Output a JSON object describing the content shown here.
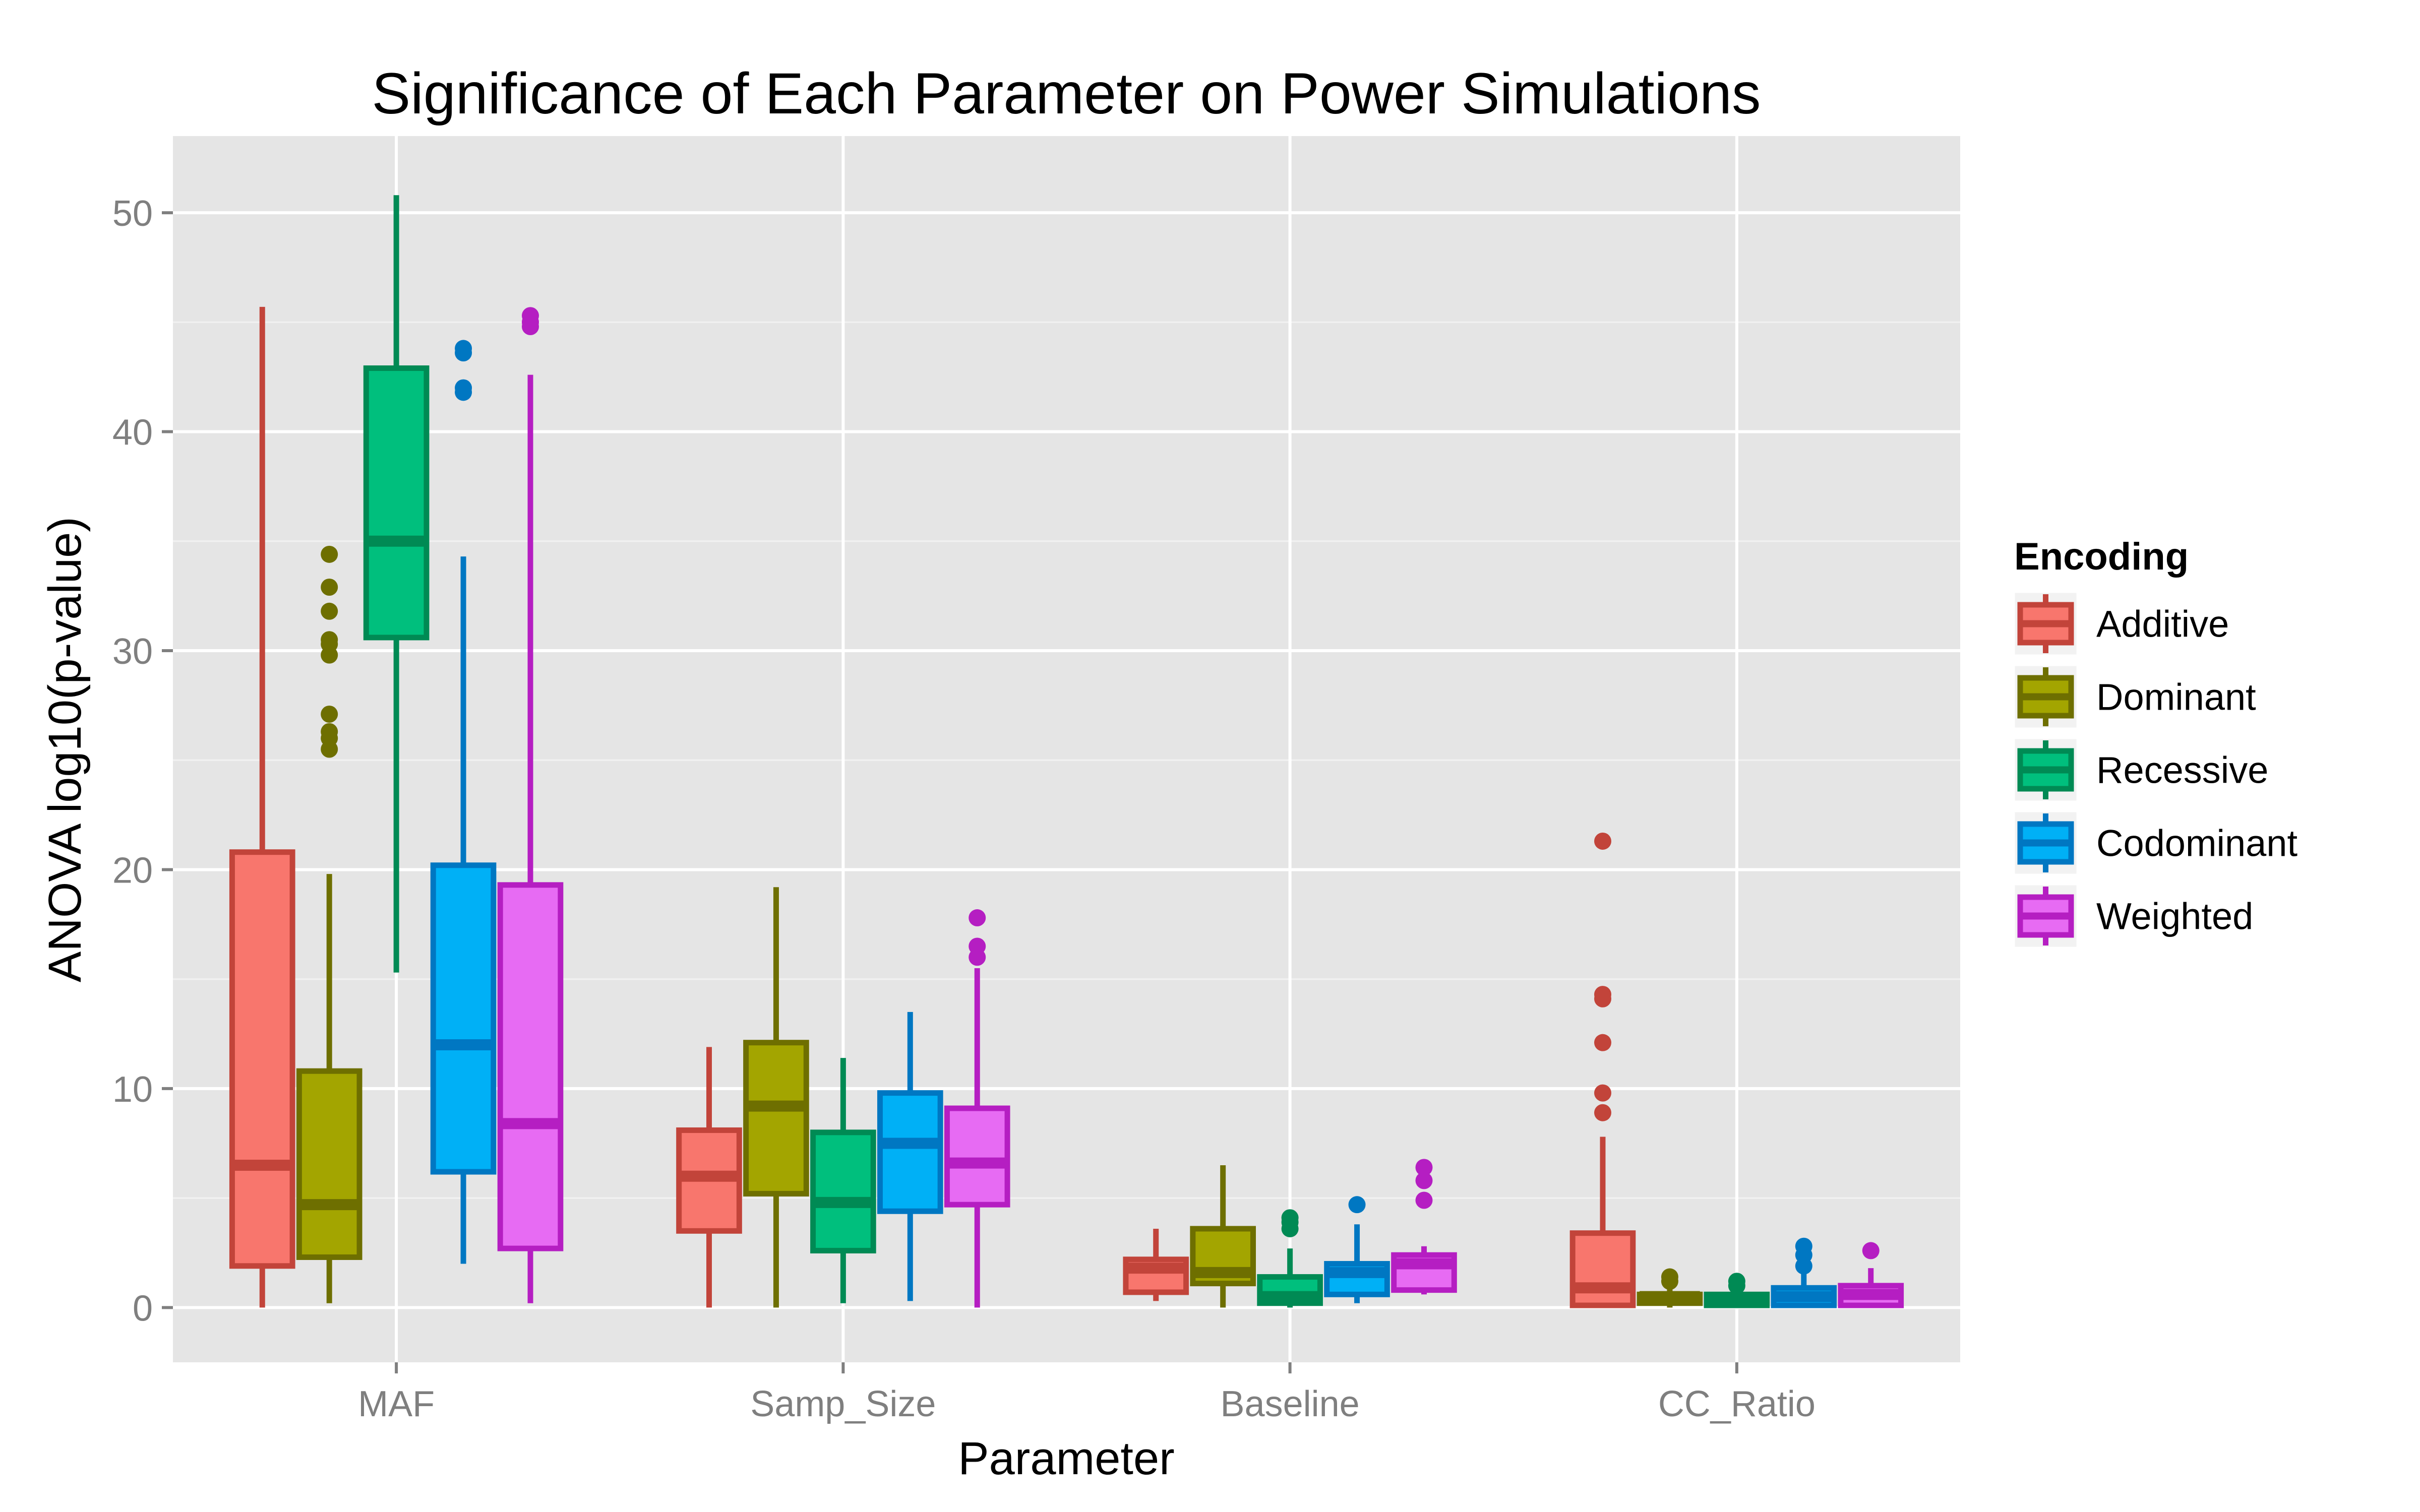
{
  "chart_data": {
    "type": "box",
    "title": "Significance of Each Parameter on Power Simulations",
    "xlabel": "Parameter",
    "ylabel": "ANOVA log10(p-value)",
    "categories": [
      "MAF",
      "Samp_Size",
      "Baseline",
      "CC_Ratio"
    ],
    "ylim": [
      -2.5,
      53.5
    ],
    "yticks": [
      0,
      10,
      20,
      30,
      40,
      50
    ],
    "grid": true,
    "legend": {
      "title": "Encoding",
      "position": "right"
    },
    "series": [
      {
        "name": "Additive",
        "fill": "#F8766D",
        "stroke": "#C2443A",
        "boxes": [
          {
            "min": 0,
            "q1": 1.9,
            "median": 6.5,
            "q3": 20.8,
            "max": 45.7,
            "outliers": []
          },
          {
            "min": 0,
            "q1": 3.5,
            "median": 6.0,
            "q3": 8.1,
            "max": 11.9,
            "outliers": []
          },
          {
            "min": 0.3,
            "q1": 0.7,
            "median": 1.8,
            "q3": 2.2,
            "max": 3.6,
            "outliers": []
          },
          {
            "min": 0,
            "q1": 0.1,
            "median": 0.9,
            "q3": 3.4,
            "max": 7.8,
            "outliers": [
              8.9,
              9.8,
              12.1,
              14.1,
              14.3,
              21.3
            ]
          }
        ]
      },
      {
        "name": "Dominant",
        "fill": "#A3A500",
        "stroke": "#6E6F00",
        "boxes": [
          {
            "min": 0.2,
            "q1": 2.3,
            "median": 4.7,
            "q3": 10.8,
            "max": 19.8,
            "outliers": [
              25.5,
              26.0,
              26.3,
              27.1,
              29.8,
              30.3,
              30.5,
              31.8,
              32.9,
              34.4
            ]
          },
          {
            "min": 0,
            "q1": 5.2,
            "median": 9.2,
            "q3": 12.1,
            "max": 19.2,
            "outliers": []
          },
          {
            "min": 0,
            "q1": 1.1,
            "median": 1.6,
            "q3": 3.6,
            "max": 6.5,
            "outliers": []
          },
          {
            "min": 0,
            "q1": 0.2,
            "median": 0.5,
            "q3": 0.6,
            "max": 1.0,
            "outliers": [
              1.2,
              1.4
            ]
          }
        ]
      },
      {
        "name": "Recessive",
        "fill": "#00BF7D",
        "stroke": "#008A54",
        "boxes": [
          {
            "min": 15.3,
            "q1": 30.6,
            "median": 35.0,
            "q3": 42.9,
            "max": 50.8,
            "outliers": []
          },
          {
            "min": 0.2,
            "q1": 2.6,
            "median": 4.8,
            "q3": 8.0,
            "max": 11.4,
            "outliers": []
          },
          {
            "min": 0,
            "q1": 0.2,
            "median": 0.5,
            "q3": 1.4,
            "max": 2.7,
            "outliers": [
              3.6,
              3.9,
              4.1
            ]
          },
          {
            "min": 0,
            "q1": 0.1,
            "median": 0.3,
            "q3": 0.6,
            "max": 0.9,
            "outliers": [
              1.0,
              1.2
            ]
          }
        ]
      },
      {
        "name": "Codominant",
        "fill": "#00B0F6",
        "stroke": "#0077C2",
        "boxes": [
          {
            "min": 2.0,
            "q1": 6.2,
            "median": 12.0,
            "q3": 20.2,
            "max": 34.3,
            "outliers": [
              41.8,
              42.0,
              43.6,
              43.8
            ]
          },
          {
            "min": 0.3,
            "q1": 4.4,
            "median": 7.5,
            "q3": 9.8,
            "max": 13.5,
            "outliers": []
          },
          {
            "min": 0.2,
            "q1": 0.6,
            "median": 1.6,
            "q3": 2.0,
            "max": 3.8,
            "outliers": [
              4.7
            ]
          },
          {
            "min": 0,
            "q1": 0.1,
            "median": 0.5,
            "q3": 0.9,
            "max": 1.6,
            "outliers": [
              1.9,
              2.4,
              2.8
            ]
          }
        ]
      },
      {
        "name": "Weighted",
        "fill": "#E76BF3",
        "stroke": "#B51EC2",
        "boxes": [
          {
            "min": 0.2,
            "q1": 2.7,
            "median": 8.4,
            "q3": 19.3,
            "max": 42.6,
            "outliers": [
              44.8,
              45.0,
              45.3
            ]
          },
          {
            "min": 0,
            "q1": 4.7,
            "median": 6.6,
            "q3": 9.1,
            "max": 15.5,
            "outliers": [
              16.0,
              16.5,
              17.8
            ]
          },
          {
            "min": 0.6,
            "q1": 0.8,
            "median": 2.0,
            "q3": 2.4,
            "max": 2.8,
            "outliers": [
              4.9,
              5.8,
              6.4
            ]
          },
          {
            "min": 0,
            "q1": 0.1,
            "median": 0.6,
            "q3": 1.0,
            "max": 1.8,
            "outliers": [
              2.6
            ]
          }
        ]
      }
    ]
  }
}
